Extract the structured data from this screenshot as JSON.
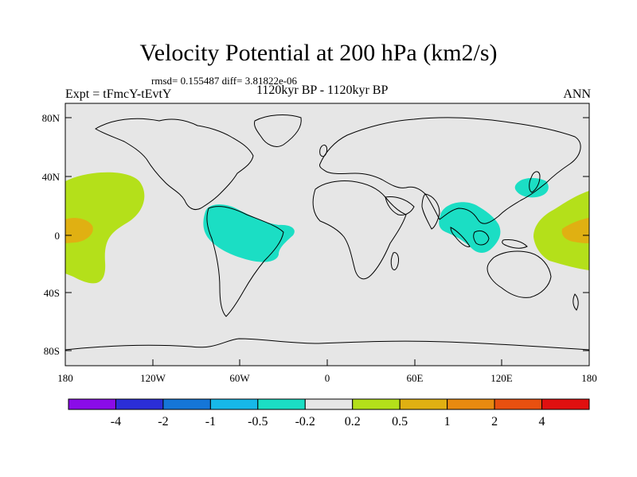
{
  "title": "Velocity Potential at 200 hPa (km2/s)",
  "stats_line": "rmsd= 0.155487 diff= 3.81822e-06",
  "experiment": "Expt = tFmcY-tEvtY",
  "period": "1120kyr BP - 1120kyr BP",
  "season": "ANN",
  "lat_ticks": [
    "80N",
    "40N",
    "0",
    "40S",
    "80S"
  ],
  "lon_ticks": [
    "180",
    "120W",
    "60W",
    "0",
    "60E",
    "120E",
    "180"
  ],
  "colors": {
    "land_ocean": "#e6e6e6",
    "coast": "#000000"
  },
  "colorbar": {
    "labels": [
      "-4",
      "-2",
      "-1",
      "-0.5",
      "-0.2",
      "0.2",
      "0.5",
      "1",
      "2",
      "4"
    ],
    "colors": [
      "#8a0ce8",
      "#2b2ed8",
      "#1576d8",
      "#17b8e8",
      "#1bdec4",
      "#e6e6e6",
      "#b4e01a",
      "#e0b012",
      "#e88a10",
      "#e85010",
      "#e01010"
    ]
  },
  "map_data": {
    "regions": [
      {
        "name": "central-pacific-positive",
        "level": "0.2 to 0.5",
        "color": "#b4e01a"
      },
      {
        "name": "central-pacific-core",
        "level": "0.5 to 1",
        "color": "#e0b012"
      },
      {
        "name": "south-america-negative",
        "level": "-0.5 to -0.2",
        "color": "#1bdec4"
      },
      {
        "name": "maritime-continent-negative",
        "level": "-0.5 to -0.2",
        "color": "#1bdec4"
      },
      {
        "name": "japan-negative",
        "level": "-0.5 to -0.2",
        "color": "#1bdec4"
      },
      {
        "name": "west-pacific-positive",
        "level": "0.2 to 0.5",
        "color": "#b4e01a"
      },
      {
        "name": "west-pacific-core",
        "level": "0.5 to 1",
        "color": "#e0b012"
      }
    ]
  }
}
